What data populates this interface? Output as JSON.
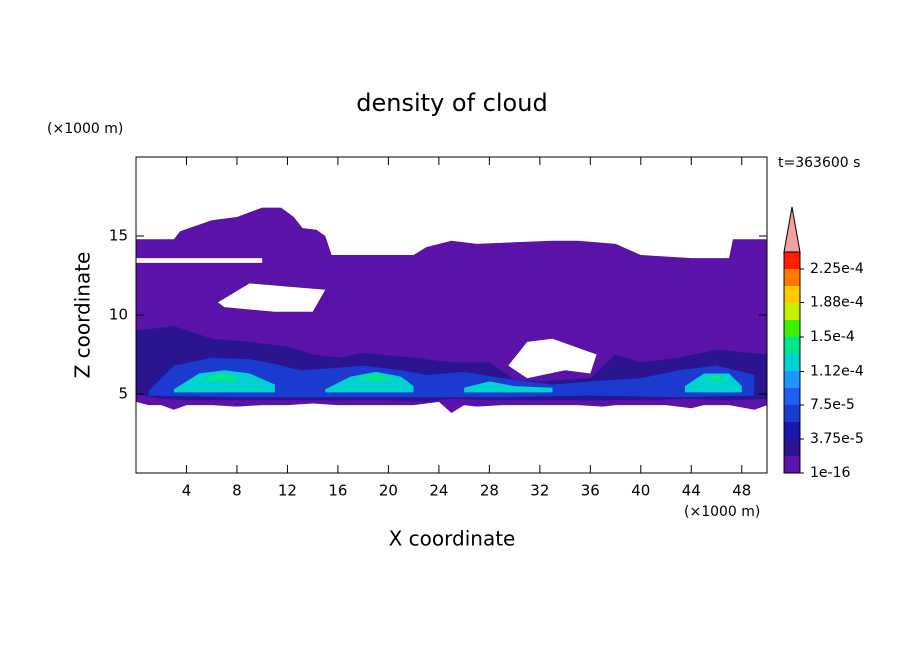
{
  "chart_data": {
    "type": "contour",
    "title": "density of cloud",
    "xlabel": "X coordinate",
    "ylabel": "Z coordinate",
    "x_unit": "(×1000 m)",
    "y_unit": "(×1000 m)",
    "time_label": "t=363600 s",
    "xlim": [
      0,
      50
    ],
    "ylim": [
      0,
      20
    ],
    "xticks": [
      4,
      8,
      12,
      16,
      20,
      24,
      28,
      32,
      36,
      40,
      44,
      48
    ],
    "yticks": [
      5,
      10,
      15
    ],
    "colorbar": {
      "levels": [
        1e-16,
        1.875e-05,
        3.75e-05,
        5.625e-05,
        7.5e-05,
        9.375e-05,
        0.0001125,
        0.00013125,
        0.00015,
        0.00016875,
        0.0001875,
        0.00020625,
        0.000225,
        0.00024375
      ],
      "colors": [
        "#5a12a8",
        "#2a1490",
        "#1818b0",
        "#1a3ad0",
        "#1e5ef0",
        "#1e96ff",
        "#00d2d2",
        "#00e68c",
        "#3cf000",
        "#c8f000",
        "#ffc800",
        "#ff7800",
        "#ff1e00"
      ],
      "extend_color": "#f4a0a0",
      "ticks": [
        {
          "value": 1e-16,
          "label": "1e-16"
        },
        {
          "value": 3.75e-05,
          "label": "3.75e-5"
        },
        {
          "value": 7.5e-05,
          "label": "7.5e-5"
        },
        {
          "value": 0.000112,
          "label": "1.12e-4"
        },
        {
          "value": 0.00015,
          "label": "1.5e-4"
        },
        {
          "value": 0.000188,
          "label": "1.88e-4"
        },
        {
          "value": 0.000225,
          "label": "2.25e-4"
        }
      ]
    },
    "regions": [
      {
        "value": 5e-06,
        "x": [
          0,
          0,
          3,
          3.5,
          6,
          8,
          10,
          11.5,
          12.5,
          13.2,
          14.3,
          15,
          15.5,
          22,
          23,
          25,
          27,
          30,
          33,
          35,
          38,
          40,
          44,
          47,
          47.3,
          50,
          50,
          49,
          47,
          45,
          44,
          42,
          40,
          38,
          37,
          35,
          33,
          31,
          29,
          27,
          26,
          25,
          24,
          22,
          20,
          18,
          16,
          14,
          12,
          10,
          8,
          6,
          4,
          3,
          2,
          1,
          null,
          0,
          10,
          10,
          0,
          null,
          6.5,
          9,
          12,
          15,
          14,
          11,
          7,
          null,
          29.5,
          31,
          33,
          36.5,
          36,
          34,
          31,
          null,
          22.3,
          23.5,
          24.5,
          23.5,
          22.5
        ],
        "z": [
          4.5,
          14.8,
          14.8,
          15.3,
          16,
          16.2,
          16.8,
          16.8,
          16.2,
          15.5,
          15.4,
          15,
          13.8,
          13.8,
          14.3,
          14.7,
          14.5,
          14.6,
          14.7,
          14.7,
          14.5,
          13.8,
          13.6,
          13.6,
          14.8,
          14.8,
          4.3,
          4.0,
          4.3,
          4.3,
          4.1,
          4.3,
          4.3,
          4.3,
          4.2,
          4.3,
          4.3,
          4.3,
          4.3,
          4.2,
          4.3,
          3.8,
          4.5,
          4.3,
          4.3,
          4.3,
          4.3,
          4.4,
          4.3,
          4.3,
          4.2,
          4.3,
          4.3,
          4.0,
          4.3,
          4.3,
          null,
          13.3,
          13.3,
          13.6,
          13.6,
          null,
          10.8,
          12.0,
          11.8,
          11.6,
          10.2,
          10.2,
          10.5,
          null,
          6.8,
          8.3,
          8.5,
          7.5,
          6.3,
          6.5,
          6.0,
          null,
          5.8,
          6.4,
          5.8,
          5.4,
          5.5
        ]
      },
      {
        "value": 2.5e-05,
        "x": [
          0,
          0,
          3,
          6,
          9,
          12,
          14,
          16,
          18,
          22,
          25,
          28,
          30,
          32,
          36,
          38,
          40,
          43,
          46,
          50,
          50,
          47,
          44,
          40,
          36,
          32,
          28,
          25,
          23,
          20,
          16,
          12,
          8,
          4,
          2
        ],
        "z": [
          5,
          9,
          9.3,
          8.5,
          8.3,
          8,
          7.5,
          7.3,
          7.6,
          7.3,
          7,
          7,
          5.9,
          5.8,
          6.0,
          7.5,
          7,
          7.3,
          7.8,
          7.5,
          4.7,
          4.6,
          4.7,
          4.6,
          4.6,
          4.6,
          4.6,
          4.7,
          4.5,
          4.6,
          4.6,
          4.6,
          4.6,
          4.6,
          4.7
        ]
      },
      {
        "value": 6e-05,
        "x": [
          1,
          3,
          6,
          9,
          11,
          13,
          15,
          18,
          21,
          23,
          26,
          29,
          33,
          36,
          40,
          43,
          46,
          49,
          49,
          43,
          36,
          29,
          22,
          15,
          8,
          1
        ],
        "z": [
          5.2,
          6.8,
          7.3,
          7.2,
          6.9,
          6.5,
          6.6,
          6.8,
          6.5,
          6.2,
          6.4,
          6,
          5.6,
          5.8,
          6,
          6.5,
          6.8,
          6.2,
          4.9,
          4.8,
          4.9,
          4.8,
          4.8,
          4.8,
          4.8,
          4.9
        ]
      },
      {
        "value": 0.00012,
        "x": [
          3,
          5,
          7,
          9,
          11,
          11,
          7,
          3,
          null,
          15,
          17,
          19,
          21,
          22,
          22,
          18,
          15,
          null,
          26,
          28,
          30,
          33,
          33,
          29,
          26,
          null,
          43.5,
          45,
          47,
          48,
          48,
          45,
          43.5
        ],
        "z": [
          5.3,
          6.3,
          6.5,
          6.3,
          5.6,
          5.1,
          5.1,
          5.1,
          null,
          5.3,
          6.1,
          6.4,
          6.1,
          5.5,
          5.1,
          5.1,
          5.1,
          null,
          5.4,
          5.8,
          5.5,
          5.4,
          5.1,
          5.1,
          5.1,
          null,
          5.5,
          6.3,
          6.3,
          5.5,
          5.1,
          5.1,
          5.1
        ]
      },
      {
        "value": 0.00014,
        "x": [
          5,
          6.5,
          8,
          8,
          5,
          null,
          17.5,
          19,
          20.5,
          19,
          null,
          45,
          46,
          47,
          46
        ],
        "z": [
          5.8,
          6.3,
          6.1,
          5.8,
          5.8,
          null,
          6.0,
          6.3,
          6.0,
          5.8,
          null,
          5.9,
          6.2,
          5.9,
          5.8
        ]
      }
    ]
  }
}
